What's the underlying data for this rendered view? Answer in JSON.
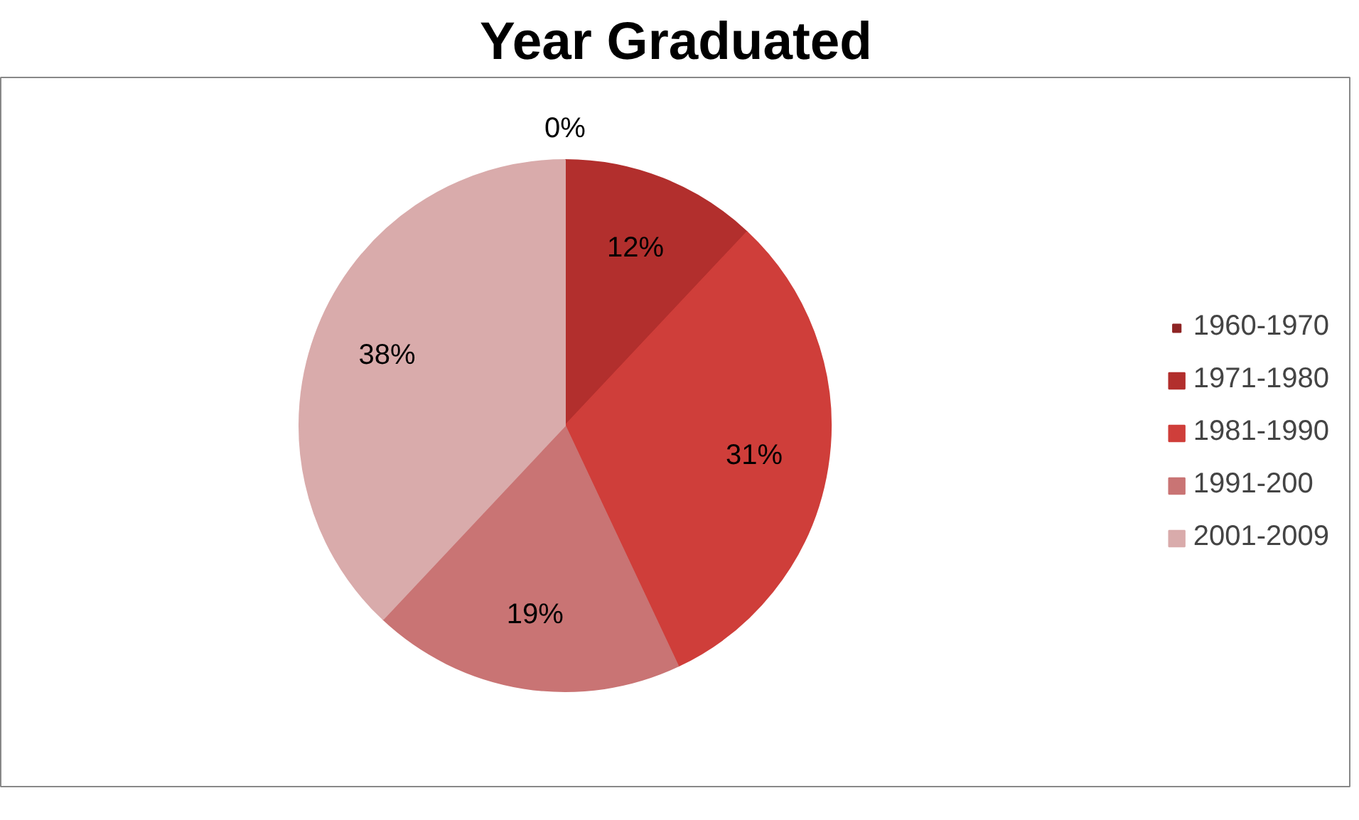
{
  "chart_data": {
    "type": "pie",
    "title": "Year Graduated",
    "categories": [
      "1960-1970",
      "1971-1980",
      "1981-1990",
      "1991-200",
      "2001-2009"
    ],
    "values": [
      0,
      12,
      31,
      19,
      38
    ],
    "colors": [
      "#8e2424",
      "#b22f2d",
      "#cf3e3a",
      "#c97474",
      "#d9abab"
    ],
    "value_labels": [
      "0%",
      "12%",
      "31%",
      "19%",
      "38%"
    ],
    "legend": "right"
  }
}
